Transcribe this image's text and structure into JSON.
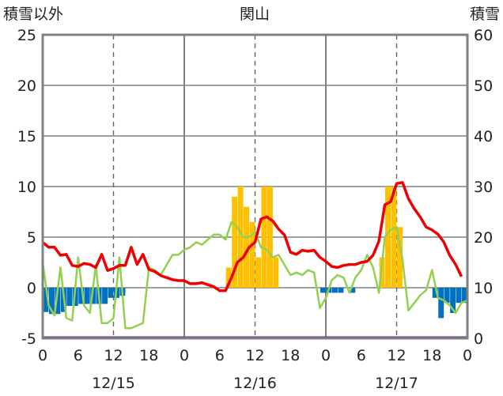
{
  "chart_data": {
    "type": "bar",
    "title": "関山",
    "y_left_label": "積雪以外",
    "y_right_label": "積雪",
    "y_left_range": [
      -5,
      25
    ],
    "y_right_range": [
      0,
      60
    ],
    "y_left_ticks": [
      "-5",
      "0",
      "5",
      "10",
      "15",
      "20",
      "25"
    ],
    "y_right_ticks": [
      "0",
      "10",
      "20",
      "30",
      "40",
      "50",
      "60"
    ],
    "x_range_hours": [
      0,
      72
    ],
    "x_tick_labels": [
      "0",
      "6",
      "12",
      "18",
      "0",
      "6",
      "12",
      "18",
      "0",
      "6",
      "12",
      "18",
      "0"
    ],
    "date_labels": [
      "12/15",
      "12/16",
      "12/17"
    ],
    "colors": {
      "temperature": "#ee0000",
      "snow_depth": "#92d050",
      "snowfall": "#ffc000",
      "negative": "#0070c0",
      "baseline": "#7030a0",
      "grid": "#777777"
    },
    "bars": [
      {
        "h": 0,
        "v": -2.4
      },
      {
        "h": 1,
        "v": -2.6
      },
      {
        "h": 2,
        "v": -2.6
      },
      {
        "h": 3,
        "v": -2.4
      },
      {
        "h": 4,
        "v": -1.8
      },
      {
        "h": 5,
        "v": -1.8
      },
      {
        "h": 6,
        "v": -1.6
      },
      {
        "h": 7,
        "v": -1.6
      },
      {
        "h": 8,
        "v": -1.6
      },
      {
        "h": 9,
        "v": -1.6
      },
      {
        "h": 10,
        "v": -1.6
      },
      {
        "h": 11,
        "v": -1.0
      },
      {
        "h": 12,
        "v": -1.0
      },
      {
        "h": 13,
        "v": -0.8
      },
      {
        "h": 31,
        "v": 2.0
      },
      {
        "h": 32,
        "v": 9.0
      },
      {
        "h": 33,
        "v": 10.0
      },
      {
        "h": 34,
        "v": 8.0
      },
      {
        "h": 35,
        "v": 6.5
      },
      {
        "h": 36,
        "v": 3.0
      },
      {
        "h": 37,
        "v": 10.0
      },
      {
        "h": 38,
        "v": 10.0
      },
      {
        "h": 39,
        "v": 3.0
      },
      {
        "h": 47,
        "v": -0.5
      },
      {
        "h": 48,
        "v": -0.5
      },
      {
        "h": 49,
        "v": -0.5
      },
      {
        "h": 50,
        "v": -0.5
      },
      {
        "h": 52,
        "v": -0.5
      },
      {
        "h": 57,
        "v": 3.0
      },
      {
        "h": 58,
        "v": 10.0
      },
      {
        "h": 59,
        "v": 10.0
      },
      {
        "h": 60,
        "v": 6.0
      },
      {
        "h": 66,
        "v": -1.0
      },
      {
        "h": 67,
        "v": -3.0
      },
      {
        "h": 68,
        "v": -1.5
      },
      {
        "h": 69,
        "v": -2.5
      },
      {
        "h": 70,
        "v": -1.5
      },
      {
        "h": 71,
        "v": -1.5
      }
    ],
    "temperature": [
      [
        0,
        4.5
      ],
      [
        1,
        4.0
      ],
      [
        2,
        4.0
      ],
      [
        3,
        3.2
      ],
      [
        4,
        3.3
      ],
      [
        5,
        2.2
      ],
      [
        6,
        2.1
      ],
      [
        7,
        2.4
      ],
      [
        8,
        2.3
      ],
      [
        9,
        2.0
      ],
      [
        10,
        3.3
      ],
      [
        11,
        1.7
      ],
      [
        12,
        1.9
      ],
      [
        13,
        2.2
      ],
      [
        14,
        2.2
      ],
      [
        15,
        4.0
      ],
      [
        16,
        2.3
      ],
      [
        17,
        3.3
      ],
      [
        18,
        1.8
      ],
      [
        19,
        1.6
      ],
      [
        20,
        1.2
      ],
      [
        21,
        1.0
      ],
      [
        22,
        0.8
      ],
      [
        23,
        0.7
      ],
      [
        24,
        0.7
      ],
      [
        25,
        0.4
      ],
      [
        26,
        0.4
      ],
      [
        27,
        0.5
      ],
      [
        28,
        0.3
      ],
      [
        29,
        0.1
      ],
      [
        30,
        -0.3
      ],
      [
        31,
        -0.3
      ],
      [
        32,
        1.0
      ],
      [
        33,
        2.5
      ],
      [
        34,
        3.0
      ],
      [
        35,
        4.0
      ],
      [
        36,
        4.5
      ],
      [
        37,
        6.8
      ],
      [
        38,
        7.0
      ],
      [
        39,
        6.6
      ],
      [
        40,
        5.8
      ],
      [
        41,
        5.2
      ],
      [
        42,
        3.5
      ],
      [
        43,
        3.3
      ],
      [
        44,
        3.7
      ],
      [
        45,
        3.6
      ],
      [
        46,
        3.7
      ],
      [
        47,
        3.0
      ],
      [
        48,
        2.6
      ],
      [
        49,
        2.1
      ],
      [
        50,
        2.0
      ],
      [
        51,
        2.2
      ],
      [
        52,
        2.3
      ],
      [
        53,
        2.3
      ],
      [
        54,
        2.5
      ],
      [
        55,
        2.6
      ],
      [
        56,
        3.2
      ],
      [
        57,
        4.6
      ],
      [
        58,
        8.2
      ],
      [
        59,
        8.5
      ],
      [
        60,
        10.3
      ],
      [
        61,
        10.4
      ],
      [
        62,
        8.8
      ],
      [
        63,
        7.8
      ],
      [
        64,
        7.0
      ],
      [
        65,
        6.0
      ],
      [
        66,
        5.7
      ],
      [
        67,
        5.3
      ],
      [
        68,
        4.5
      ],
      [
        69,
        3.2
      ],
      [
        70,
        2.3
      ],
      [
        71,
        1.1
      ]
    ],
    "snow_depth": [
      [
        0,
        15.0
      ],
      [
        1,
        6.5
      ],
      [
        2,
        4.5
      ],
      [
        3,
        14.0
      ],
      [
        4,
        4.0
      ],
      [
        5,
        3.5
      ],
      [
        6,
        16.0
      ],
      [
        7,
        6.5
      ],
      [
        8,
        5.0
      ],
      [
        9,
        14.5
      ],
      [
        10,
        3.0
      ],
      [
        11,
        3.0
      ],
      [
        12,
        4.0
      ],
      [
        13,
        16.0
      ],
      [
        14,
        2.0
      ],
      [
        15,
        2.0
      ],
      [
        16,
        2.5
      ],
      [
        17,
        3.0
      ],
      [
        18,
        14.0
      ],
      [
        19,
        13.5
      ],
      [
        20,
        12.5
      ],
      [
        21,
        14.5
      ],
      [
        22,
        16.5
      ],
      [
        23,
        16.5
      ],
      [
        24,
        17.5
      ],
      [
        25,
        18.0
      ],
      [
        26,
        19.0
      ],
      [
        27,
        18.5
      ],
      [
        28,
        19.5
      ],
      [
        29,
        20.5
      ],
      [
        30,
        20.5
      ],
      [
        31,
        19.5
      ],
      [
        32,
        23.0
      ],
      [
        33,
        22.0
      ],
      [
        34,
        20.0
      ],
      [
        35,
        20.0
      ],
      [
        36,
        21.0
      ],
      [
        37,
        18.0
      ],
      [
        38,
        17.5
      ],
      [
        39,
        16.0
      ],
      [
        40,
        16.5
      ],
      [
        41,
        14.5
      ],
      [
        42,
        12.5
      ],
      [
        43,
        13.0
      ],
      [
        44,
        12.5
      ],
      [
        45,
        13.5
      ],
      [
        46,
        13.0
      ],
      [
        47,
        6.0
      ],
      [
        48,
        8.0
      ],
      [
        49,
        11.5
      ],
      [
        50,
        12.5
      ],
      [
        51,
        12.0
      ],
      [
        52,
        9.0
      ],
      [
        53,
        12.0
      ],
      [
        54,
        13.5
      ],
      [
        55,
        16.5
      ],
      [
        56,
        14.0
      ],
      [
        57,
        9.0
      ],
      [
        58,
        20.0
      ],
      [
        59,
        21.5
      ],
      [
        60,
        22.0
      ],
      [
        61,
        15.5
      ],
      [
        62,
        5.5
      ],
      [
        63,
        7.0
      ],
      [
        64,
        8.5
      ],
      [
        65,
        9.5
      ],
      [
        66,
        13.5
      ],
      [
        67,
        8.0
      ],
      [
        68,
        7.5
      ],
      [
        69,
        6.5
      ],
      [
        70,
        5.0
      ],
      [
        71,
        7.0
      ],
      [
        72,
        7.5
      ]
    ]
  }
}
